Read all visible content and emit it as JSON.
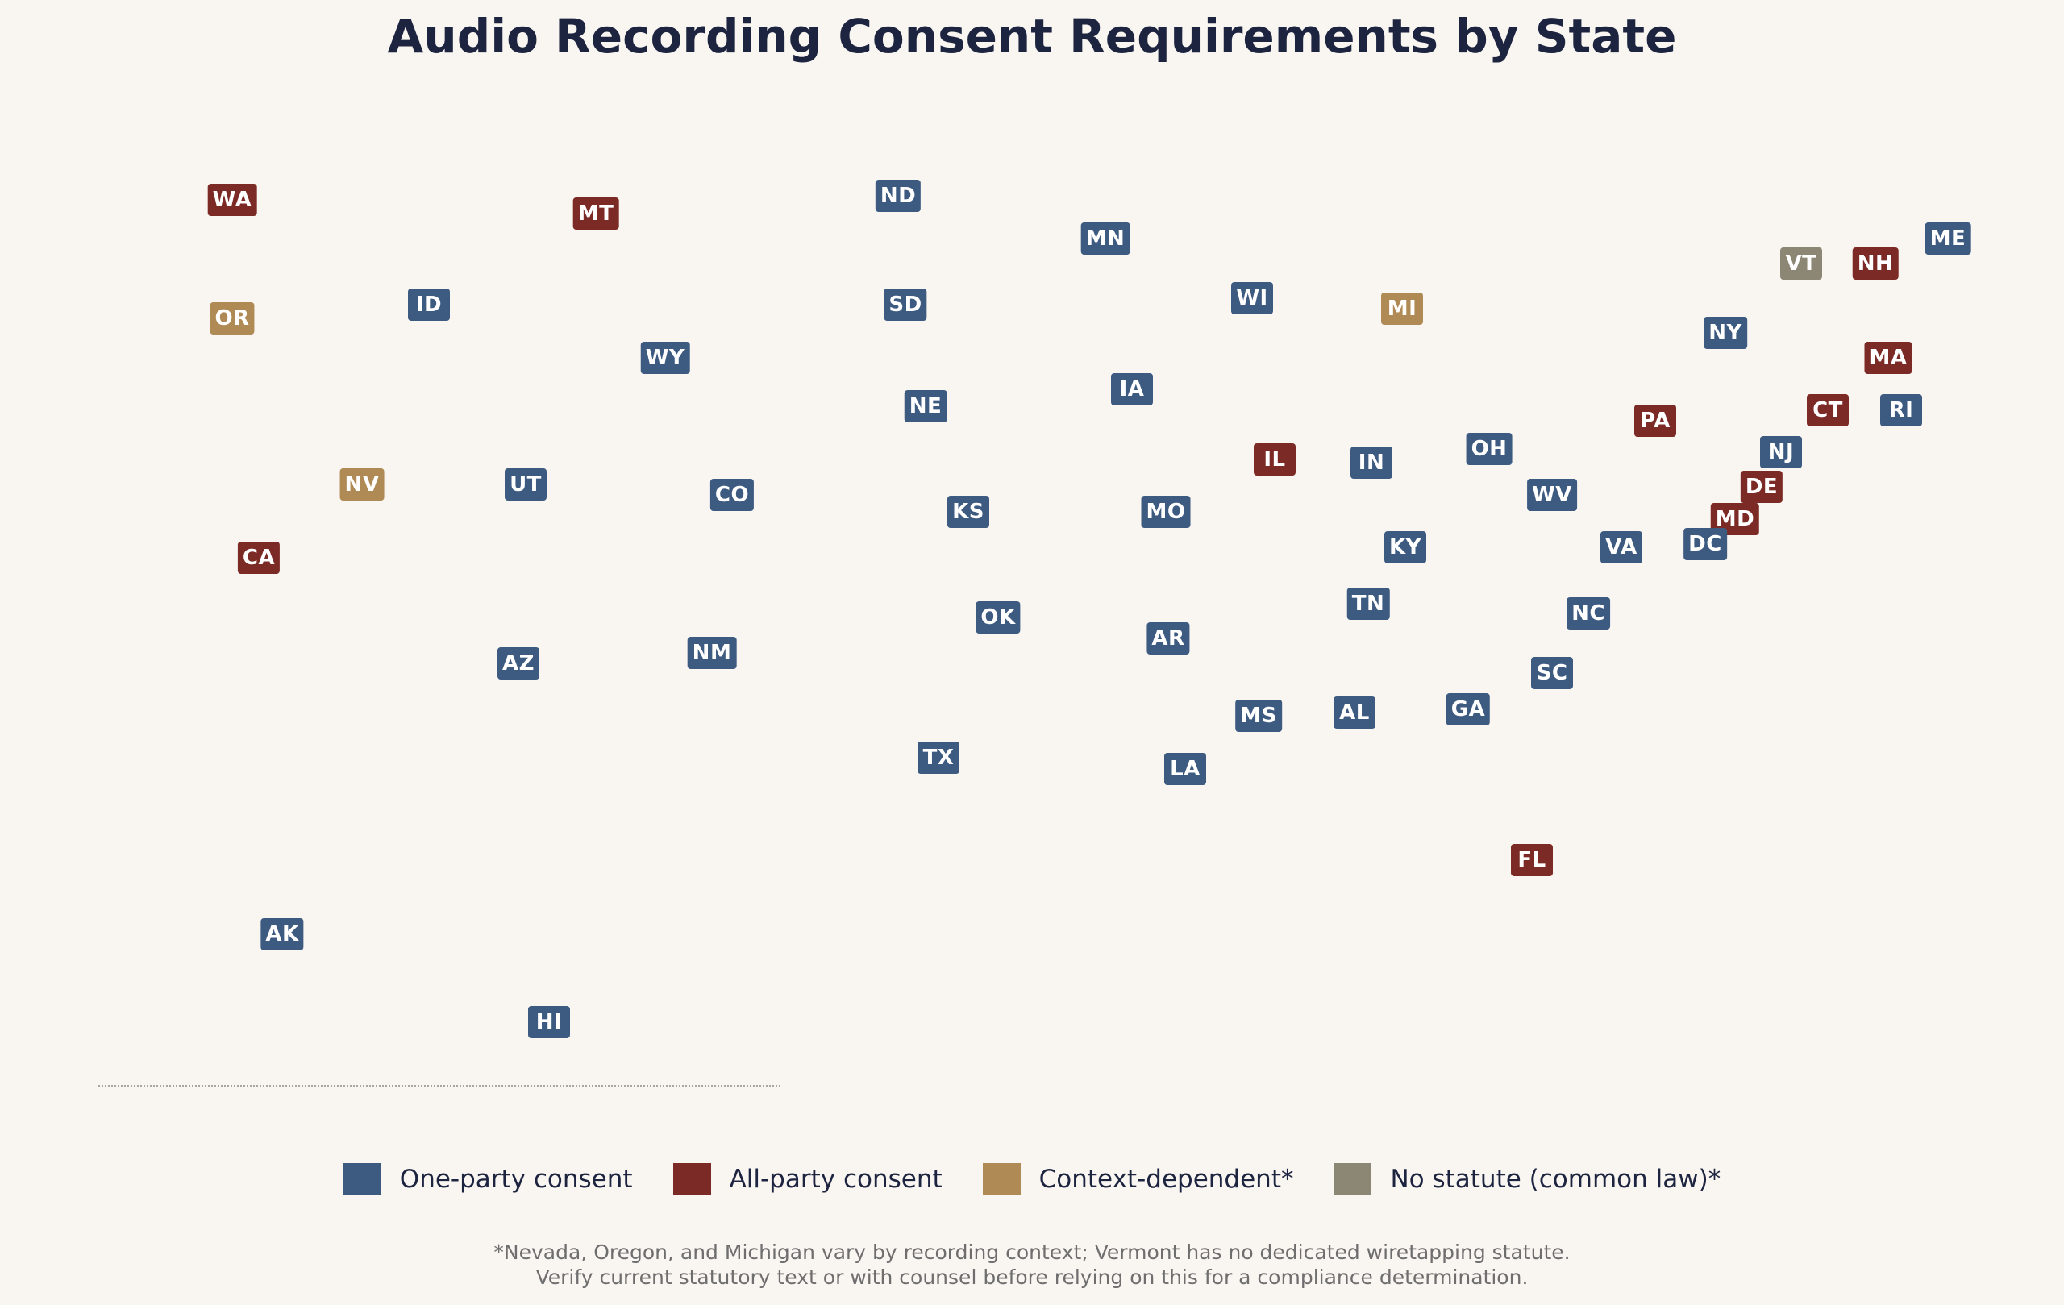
{
  "title": "Audio Recording Consent Requirements by State",
  "colors": {
    "one_party": "#3d5a80",
    "all_party": "#7c2a25",
    "context": "#b08a55",
    "no_statute": "#8c8674"
  },
  "categories": {
    "one_party": "One-party consent",
    "all_party": "All-party consent",
    "context": "Context-dependent*",
    "no_statute": "No statute (common law)*"
  },
  "legend_order": [
    "one_party",
    "all_party",
    "context",
    "no_statute"
  ],
  "states": [
    {
      "abbr": "WA",
      "category": "all_party"
    },
    {
      "abbr": "MT",
      "category": "all_party"
    },
    {
      "abbr": "ND",
      "category": "one_party"
    },
    {
      "abbr": "MN",
      "category": "one_party"
    },
    {
      "abbr": "ME",
      "category": "one_party"
    },
    {
      "abbr": "VT",
      "category": "no_statute"
    },
    {
      "abbr": "NH",
      "category": "all_party"
    },
    {
      "abbr": "OR",
      "category": "context"
    },
    {
      "abbr": "ID",
      "category": "one_party"
    },
    {
      "abbr": "SD",
      "category": "one_party"
    },
    {
      "abbr": "WI",
      "category": "one_party"
    },
    {
      "abbr": "MI",
      "category": "context"
    },
    {
      "abbr": "NY",
      "category": "one_party"
    },
    {
      "abbr": "MA",
      "category": "all_party"
    },
    {
      "abbr": "WY",
      "category": "one_party"
    },
    {
      "abbr": "IA",
      "category": "one_party"
    },
    {
      "abbr": "NE",
      "category": "one_party"
    },
    {
      "abbr": "PA",
      "category": "all_party"
    },
    {
      "abbr": "CT",
      "category": "all_party"
    },
    {
      "abbr": "RI",
      "category": "one_party"
    },
    {
      "abbr": "OH",
      "category": "one_party"
    },
    {
      "abbr": "NJ",
      "category": "one_party"
    },
    {
      "abbr": "IL",
      "category": "all_party"
    },
    {
      "abbr": "IN",
      "category": "one_party"
    },
    {
      "abbr": "NV",
      "category": "context"
    },
    {
      "abbr": "UT",
      "category": "one_party"
    },
    {
      "abbr": "CO",
      "category": "one_party"
    },
    {
      "abbr": "DE",
      "category": "all_party"
    },
    {
      "abbr": "WV",
      "category": "one_party"
    },
    {
      "abbr": "KS",
      "category": "one_party"
    },
    {
      "abbr": "MO",
      "category": "one_party"
    },
    {
      "abbr": "MD",
      "category": "all_party"
    },
    {
      "abbr": "KY",
      "category": "one_party"
    },
    {
      "abbr": "VA",
      "category": "one_party"
    },
    {
      "abbr": "DC",
      "category": "one_party"
    },
    {
      "abbr": "CA",
      "category": "all_party"
    },
    {
      "abbr": "TN",
      "category": "one_party"
    },
    {
      "abbr": "NC",
      "category": "one_party"
    },
    {
      "abbr": "OK",
      "category": "one_party"
    },
    {
      "abbr": "AR",
      "category": "one_party"
    },
    {
      "abbr": "AZ",
      "category": "one_party"
    },
    {
      "abbr": "NM",
      "category": "one_party"
    },
    {
      "abbr": "SC",
      "category": "one_party"
    },
    {
      "abbr": "GA",
      "category": "one_party"
    },
    {
      "abbr": "AL",
      "category": "one_party"
    },
    {
      "abbr": "MS",
      "category": "one_party"
    },
    {
      "abbr": "TX",
      "category": "one_party"
    },
    {
      "abbr": "LA",
      "category": "one_party"
    },
    {
      "abbr": "FL",
      "category": "all_party"
    },
    {
      "abbr": "AK",
      "category": "one_party"
    },
    {
      "abbr": "HI",
      "category": "one_party"
    }
  ],
  "footnote": {
    "line1": "*Nevada, Oregon, and Michigan vary by recording context; Vermont has no dedicated wiretapping statute.",
    "line2": "Verify current statutory text or with counsel before relying on this for a compliance determination."
  }
}
